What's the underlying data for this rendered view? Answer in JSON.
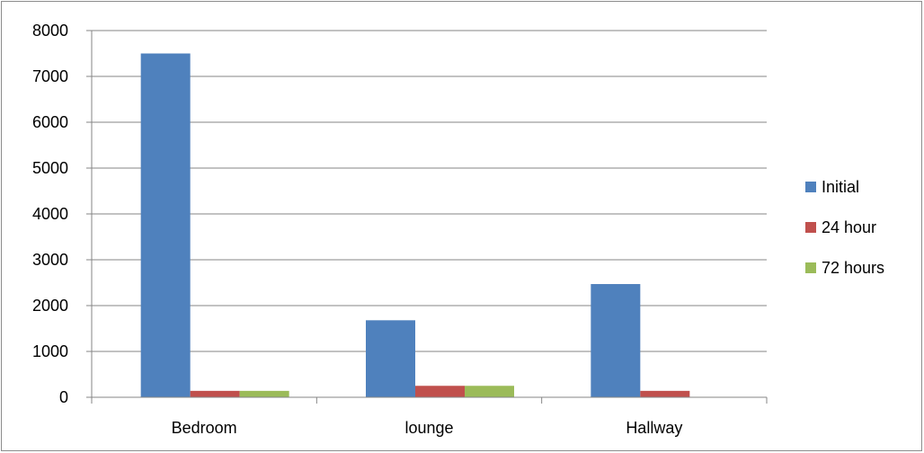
{
  "chart_data": {
    "type": "bar",
    "categories": [
      "Bedroom",
      "lounge",
      "Hallway"
    ],
    "series": [
      {
        "name": "Initial",
        "color": "#4f81bd",
        "values": [
          7500,
          1680,
          2470
        ]
      },
      {
        "name": "24 hour",
        "color": "#c0504d",
        "values": [
          140,
          250,
          140
        ]
      },
      {
        "name": "72 hours",
        "color": "#9bbb59",
        "values": [
          140,
          250,
          10
        ]
      }
    ],
    "ylim": [
      0,
      8000
    ],
    "yticks": [
      "0",
      "1000",
      "2000",
      "3000",
      "4000",
      "5000",
      "6000",
      "7000",
      "8000"
    ],
    "grid": true,
    "legend": "right"
  }
}
